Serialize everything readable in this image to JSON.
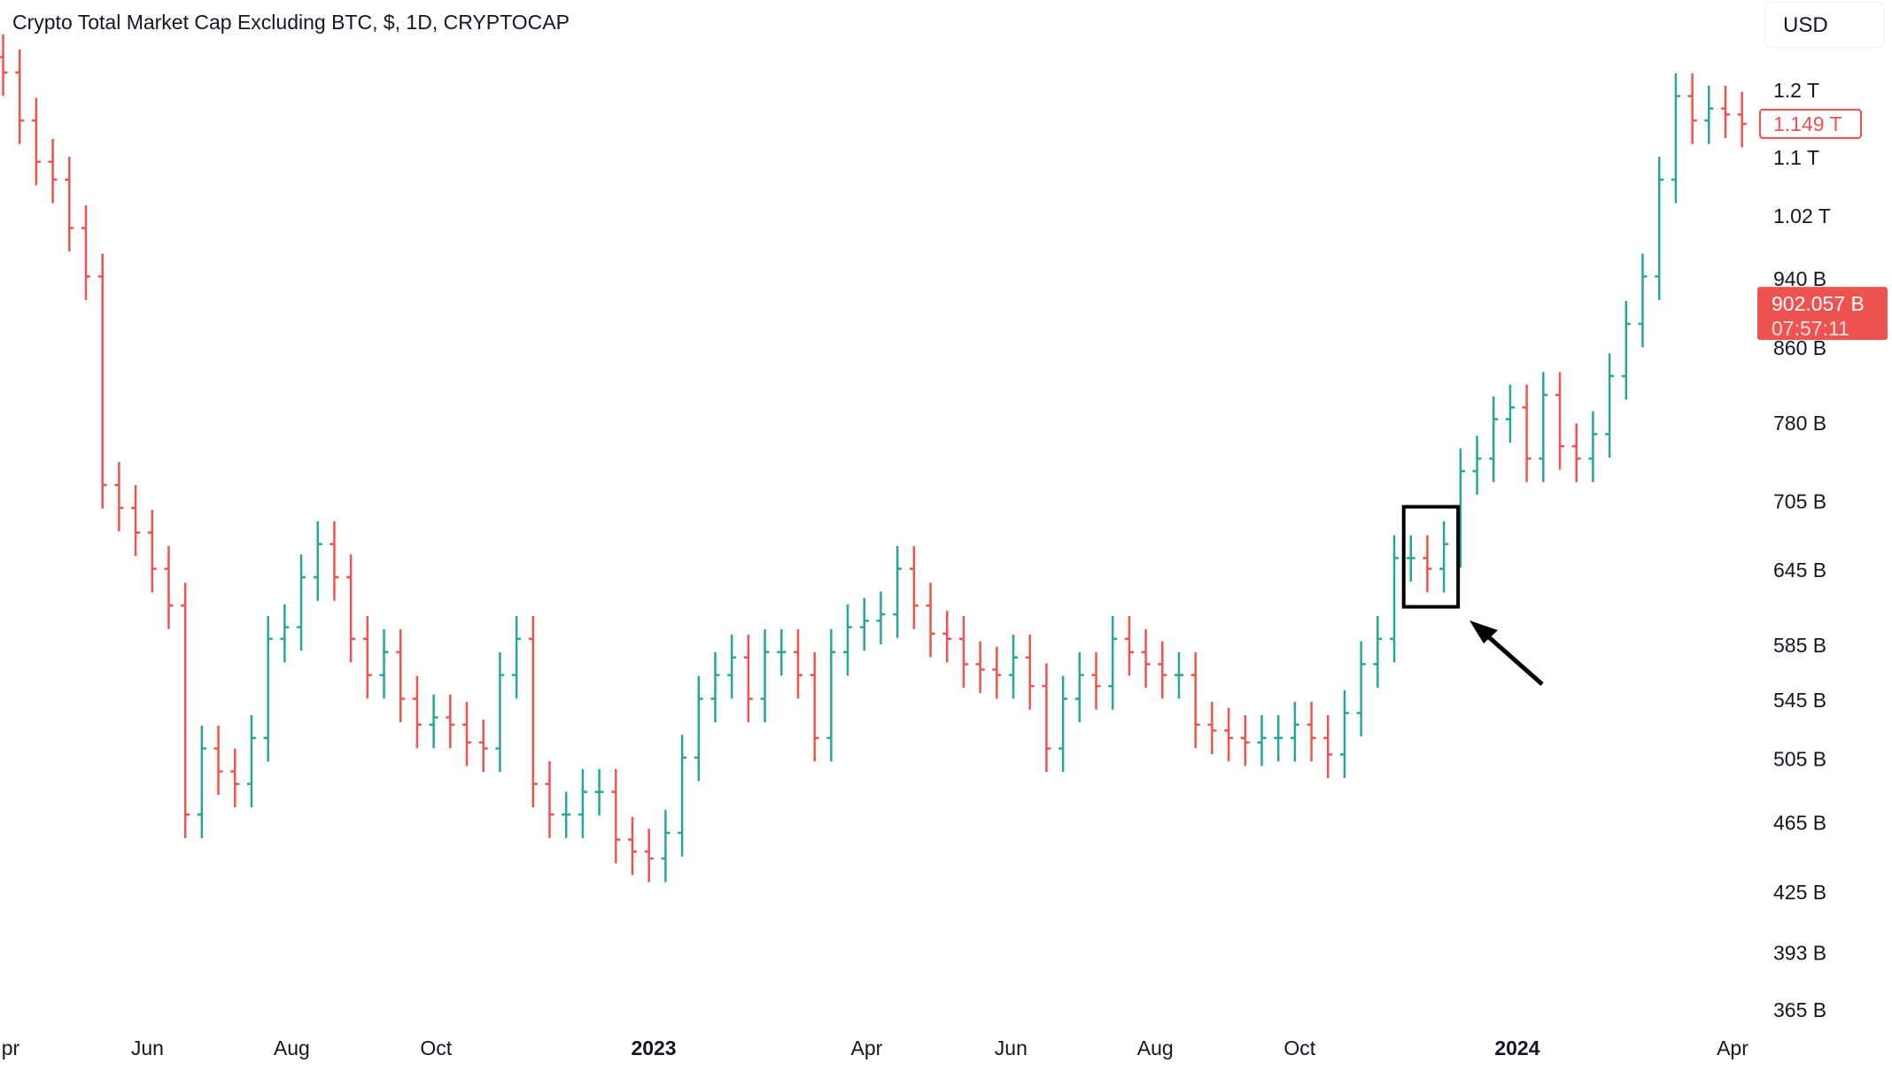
{
  "chart_data": {
    "type": "ohlc",
    "title": "Crypto Total Market Cap Excluding BTC, $, 1D, CRYPTOCAP",
    "currency": "USD",
    "y_scale": "log",
    "y_unit": "B (USD)",
    "ylim": [
      350,
      1260
    ],
    "y_ticks": [
      {
        "value": 1200,
        "label": "1.2 T"
      },
      {
        "value": 1100,
        "label": "1.1 T"
      },
      {
        "value": 1020,
        "label": "1.02 T"
      },
      {
        "value": 940,
        "label": "940 B"
      },
      {
        "value": 860,
        "label": "860 B"
      },
      {
        "value": 780,
        "label": "780 B"
      },
      {
        "value": 705,
        "label": "705 B"
      },
      {
        "value": 645,
        "label": "645 B"
      },
      {
        "value": 585,
        "label": "585 B"
      },
      {
        "value": 545,
        "label": "545 B"
      },
      {
        "value": 505,
        "label": "505 B"
      },
      {
        "value": 465,
        "label": "465 B"
      },
      {
        "value": 425,
        "label": "425 B"
      },
      {
        "value": 393,
        "label": "393 B"
      },
      {
        "value": 365,
        "label": "365 B"
      }
    ],
    "x_ticks": [
      {
        "date": "2022-04-01",
        "label": "pr",
        "bold": false
      },
      {
        "date": "2022-06-01",
        "label": "Jun",
        "bold": false
      },
      {
        "date": "2022-08-01",
        "label": "Aug",
        "bold": false
      },
      {
        "date": "2022-10-01",
        "label": "Oct",
        "bold": false
      },
      {
        "date": "2023-01-01",
        "label": "2023",
        "bold": true
      },
      {
        "date": "2023-04-01",
        "label": "Apr",
        "bold": false
      },
      {
        "date": "2023-06-01",
        "label": "Jun",
        "bold": false
      },
      {
        "date": "2023-08-01",
        "label": "Aug",
        "bold": false
      },
      {
        "date": "2023-10-01",
        "label": "Oct",
        "bold": false
      },
      {
        "date": "2024-01-01",
        "label": "2024",
        "bold": true
      },
      {
        "date": "2024-04-01",
        "label": "Apr",
        "bold": false
      }
    ],
    "series_start": "2022-04-01",
    "series_interval_days": 7,
    "closes": [
      1228,
      1154,
      1094,
      1069,
      1004,
      943,
      720,
      699,
      677,
      646,
      616,
      470,
      512,
      497,
      489,
      519,
      590,
      599,
      639,
      667,
      639,
      590,
      563,
      580,
      546,
      528,
      533,
      528,
      516,
      512,
      563,
      590,
      489,
      470,
      470,
      484,
      484,
      455,
      448,
      444,
      459,
      506,
      546,
      563,
      576,
      546,
      580,
      580,
      563,
      519,
      580,
      599,
      604,
      609,
      646,
      616,
      594,
      590,
      571,
      567,
      563,
      576,
      555,
      512,
      546,
      563,
      555,
      590,
      580,
      571,
      563,
      563,
      528,
      524,
      519,
      516,
      519,
      519,
      528,
      519,
      508,
      536,
      571,
      590,
      655,
      655,
      646,
      667,
      733,
      745,
      784,
      796,
      745,
      809,
      757,
      745,
      769,
      829,
      887,
      943,
      1069,
      1191,
      1154,
      1172,
      1163,
      1149
    ],
    "last_price": {
      "label": "1.149 T",
      "value": 1149
    },
    "marker_price": {
      "label": "902.057 B",
      "countdown": "07:57:11",
      "value": 902.057
    },
    "annotation": {
      "type": "box-with-arrow",
      "from_date": "2023-11-14",
      "to_date": "2023-12-07",
      "low": 615,
      "high": 700
    },
    "colors": {
      "up": "#26a69a",
      "down": "#ef5350",
      "annotation": "#000000"
    }
  }
}
